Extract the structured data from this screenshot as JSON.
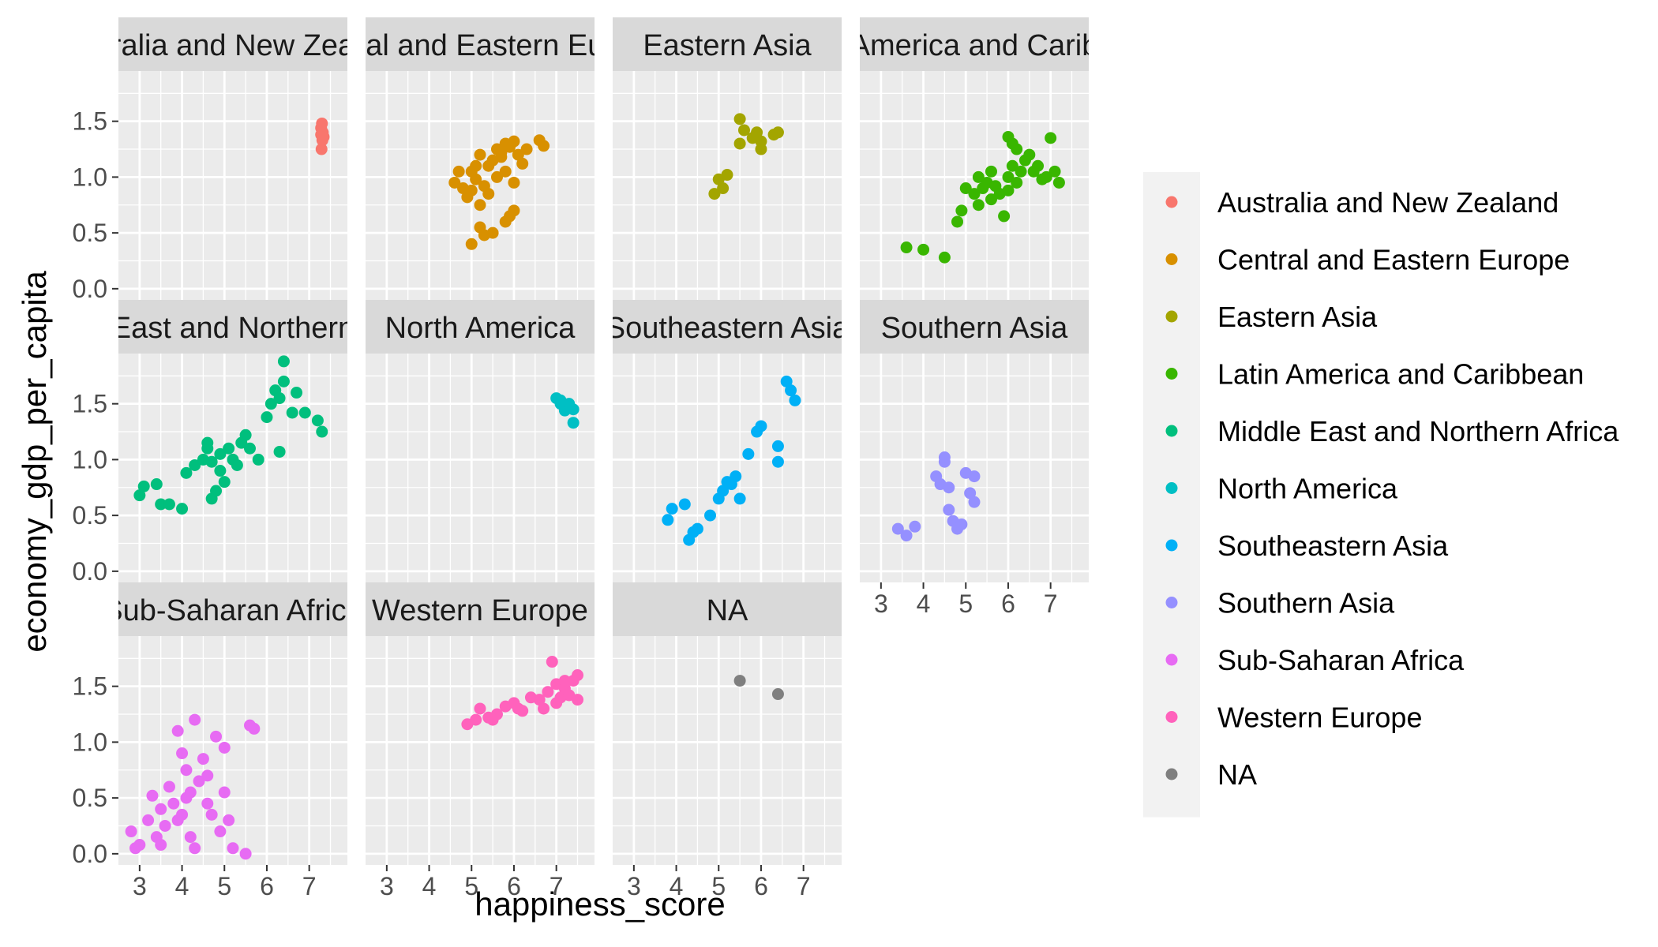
{
  "chart_data": {
    "type": "scatter",
    "xlabel": "happiness_score",
    "ylabel": "economy_gdp_per_capita",
    "xlim": [
      2.5,
      7.9
    ],
    "ylim": [
      -0.1,
      1.95
    ],
    "x_ticks": [
      "3",
      "4",
      "5",
      "6",
      "7"
    ],
    "y_ticks": [
      "0.0",
      "0.5",
      "1.0",
      "1.5"
    ],
    "grid": true,
    "legend_position": "right",
    "panel_strip_labels": [
      "ralia and New Zea",
      "ral and Eastern Eu",
      "Eastern Asia",
      "America and Carib",
      "East and Northern",
      "North America",
      "Southeastern Asia",
      "Southern Asia",
      "Sub-Saharan Africa",
      "Western Europe",
      "NA"
    ],
    "series": [
      {
        "name": "Australia and New Zealand",
        "color": "#F8766D",
        "points": [
          [
            7.28,
            1.44
          ],
          [
            7.31,
            1.33
          ],
          [
            7.29,
            1.25
          ],
          [
            7.32,
            1.4
          ],
          [
            7.3,
            1.48
          ],
          [
            7.28,
            1.38
          ],
          [
            7.34,
            1.36
          ]
        ]
      },
      {
        "name": "Central and Eastern Europe",
        "color": "#D89000",
        "points": [
          [
            4.8,
            0.9
          ],
          [
            5.0,
            1.05
          ],
          [
            5.1,
            0.98
          ],
          [
            5.2,
            1.2
          ],
          [
            5.3,
            0.92
          ],
          [
            5.4,
            1.1
          ],
          [
            5.5,
            1.15
          ],
          [
            5.6,
            1.25
          ],
          [
            5.7,
            1.18
          ],
          [
            5.8,
            1.3
          ],
          [
            5.9,
            1.27
          ],
          [
            6.0,
            1.32
          ],
          [
            6.1,
            1.2
          ],
          [
            6.2,
            1.12
          ],
          [
            6.6,
            1.33
          ],
          [
            6.7,
            1.28
          ],
          [
            4.9,
            0.82
          ],
          [
            5.2,
            0.75
          ],
          [
            5.4,
            0.85
          ],
          [
            5.6,
            1.0
          ],
          [
            5.8,
            1.05
          ],
          [
            6.0,
            0.95
          ],
          [
            6.0,
            0.7
          ],
          [
            5.9,
            0.65
          ],
          [
            5.8,
            0.6
          ],
          [
            5.2,
            0.55
          ],
          [
            5.3,
            0.48
          ],
          [
            5.0,
            0.4
          ],
          [
            5.5,
            0.5
          ],
          [
            4.7,
            1.05
          ],
          [
            5.1,
            1.1
          ],
          [
            5.7,
            1.22
          ],
          [
            6.3,
            1.25
          ],
          [
            5.0,
            0.88
          ],
          [
            4.6,
            0.95
          ]
        ]
      },
      {
        "name": "Eastern Asia",
        "color": "#A3A500",
        "points": [
          [
            4.9,
            0.85
          ],
          [
            5.0,
            0.98
          ],
          [
            5.1,
            0.9
          ],
          [
            5.2,
            1.02
          ],
          [
            5.5,
            1.3
          ],
          [
            5.5,
            1.52
          ],
          [
            5.6,
            1.42
          ],
          [
            5.9,
            1.4
          ],
          [
            6.0,
            1.32
          ],
          [
            6.0,
            1.25
          ],
          [
            6.3,
            1.38
          ],
          [
            6.4,
            1.4
          ],
          [
            5.8,
            1.35
          ]
        ]
      },
      {
        "name": "Latin America and Caribbean",
        "color": "#39B600",
        "points": [
          [
            3.6,
            0.37
          ],
          [
            4.0,
            0.35
          ],
          [
            4.5,
            0.28
          ],
          [
            4.8,
            0.6
          ],
          [
            4.9,
            0.7
          ],
          [
            5.0,
            0.9
          ],
          [
            5.2,
            0.85
          ],
          [
            5.3,
            0.75
          ],
          [
            5.4,
            0.9
          ],
          [
            5.5,
            0.95
          ],
          [
            5.6,
            1.05
          ],
          [
            5.7,
            0.92
          ],
          [
            5.8,
            0.85
          ],
          [
            5.9,
            0.65
          ],
          [
            6.0,
            1.0
          ],
          [
            6.0,
            0.88
          ],
          [
            6.1,
            1.1
          ],
          [
            6.1,
            1.3
          ],
          [
            6.2,
            0.95
          ],
          [
            6.3,
            1.05
          ],
          [
            6.4,
            1.15
          ],
          [
            6.5,
            1.2
          ],
          [
            6.6,
            1.05
          ],
          [
            6.7,
            1.1
          ],
          [
            6.8,
            0.98
          ],
          [
            6.9,
            1.0
          ],
          [
            7.0,
            1.35
          ],
          [
            7.1,
            1.05
          ],
          [
            7.2,
            0.95
          ],
          [
            6.0,
            1.36
          ],
          [
            5.6,
            0.8
          ],
          [
            6.2,
            1.25
          ],
          [
            5.3,
            1.0
          ]
        ]
      },
      {
        "name": "Middle East and Northern Africa",
        "color": "#00BF7D",
        "points": [
          [
            3.0,
            0.68
          ],
          [
            3.1,
            0.76
          ],
          [
            3.4,
            0.78
          ],
          [
            3.5,
            0.6
          ],
          [
            3.7,
            0.6
          ],
          [
            4.0,
            0.56
          ],
          [
            4.1,
            0.88
          ],
          [
            4.3,
            0.95
          ],
          [
            4.5,
            1.0
          ],
          [
            4.6,
            1.1
          ],
          [
            4.7,
            0.98
          ],
          [
            4.7,
            0.65
          ],
          [
            4.8,
            0.72
          ],
          [
            4.9,
            1.05
          ],
          [
            5.0,
            0.8
          ],
          [
            5.1,
            1.1
          ],
          [
            5.2,
            1.0
          ],
          [
            5.3,
            0.95
          ],
          [
            5.4,
            1.15
          ],
          [
            5.5,
            1.22
          ],
          [
            5.6,
            1.1
          ],
          [
            5.8,
            1.0
          ],
          [
            6.0,
            1.38
          ],
          [
            6.1,
            1.5
          ],
          [
            6.2,
            1.62
          ],
          [
            6.3,
            1.55
          ],
          [
            6.4,
            1.7
          ],
          [
            6.4,
            1.88
          ],
          [
            6.6,
            1.42
          ],
          [
            6.7,
            1.6
          ],
          [
            6.9,
            1.42
          ],
          [
            7.2,
            1.35
          ],
          [
            7.3,
            1.25
          ],
          [
            6.3,
            1.07
          ],
          [
            4.6,
            1.15
          ],
          [
            4.9,
            0.9
          ]
        ]
      },
      {
        "name": "North America",
        "color": "#00BFC4",
        "points": [
          [
            7.0,
            1.55
          ],
          [
            7.1,
            1.5
          ],
          [
            7.2,
            1.44
          ],
          [
            7.3,
            1.5
          ],
          [
            7.4,
            1.45
          ],
          [
            7.4,
            1.33
          ],
          [
            7.1,
            1.53
          ]
        ]
      },
      {
        "name": "Southeastern Asia",
        "color": "#00B0F6",
        "points": [
          [
            3.8,
            0.46
          ],
          [
            3.9,
            0.56
          ],
          [
            4.2,
            0.6
          ],
          [
            4.3,
            0.28
          ],
          [
            4.4,
            0.35
          ],
          [
            4.5,
            0.38
          ],
          [
            4.8,
            0.5
          ],
          [
            5.0,
            0.65
          ],
          [
            5.1,
            0.72
          ],
          [
            5.2,
            0.8
          ],
          [
            5.4,
            0.85
          ],
          [
            5.5,
            0.65
          ],
          [
            5.7,
            1.05
          ],
          [
            5.9,
            1.25
          ],
          [
            6.0,
            1.3
          ],
          [
            6.4,
            1.12
          ],
          [
            6.4,
            0.98
          ],
          [
            6.6,
            1.7
          ],
          [
            6.7,
            1.62
          ],
          [
            6.8,
            1.53
          ],
          [
            5.3,
            0.78
          ]
        ]
      },
      {
        "name": "Southern Asia",
        "color": "#9590FF",
        "points": [
          [
            3.4,
            0.38
          ],
          [
            3.6,
            0.32
          ],
          [
            3.8,
            0.4
          ],
          [
            4.3,
            0.85
          ],
          [
            4.4,
            0.78
          ],
          [
            4.5,
            0.98
          ],
          [
            4.5,
            1.02
          ],
          [
            4.6,
            0.75
          ],
          [
            4.6,
            0.55
          ],
          [
            4.7,
            0.45
          ],
          [
            4.8,
            0.38
          ],
          [
            4.9,
            0.42
          ],
          [
            5.0,
            0.88
          ],
          [
            5.1,
            0.7
          ],
          [
            5.2,
            0.85
          ],
          [
            5.2,
            0.62
          ]
        ]
      },
      {
        "name": "Sub-Saharan Africa",
        "color": "#E76BF3",
        "points": [
          [
            2.8,
            0.2
          ],
          [
            2.9,
            0.05
          ],
          [
            3.0,
            0.08
          ],
          [
            3.2,
            0.3
          ],
          [
            3.3,
            0.52
          ],
          [
            3.4,
            0.15
          ],
          [
            3.5,
            0.4
          ],
          [
            3.6,
            0.25
          ],
          [
            3.7,
            0.6
          ],
          [
            3.8,
            0.45
          ],
          [
            3.9,
            1.1
          ],
          [
            4.0,
            0.9
          ],
          [
            4.0,
            0.35
          ],
          [
            4.1,
            0.75
          ],
          [
            4.2,
            0.55
          ],
          [
            4.2,
            0.15
          ],
          [
            4.3,
            1.2
          ],
          [
            4.4,
            0.65
          ],
          [
            4.5,
            0.85
          ],
          [
            4.6,
            0.45
          ],
          [
            4.7,
            0.35
          ],
          [
            4.8,
            1.05
          ],
          [
            4.9,
            0.2
          ],
          [
            5.0,
            0.55
          ],
          [
            5.0,
            0.95
          ],
          [
            5.1,
            0.3
          ],
          [
            5.2,
            0.05
          ],
          [
            5.5,
            0.0
          ],
          [
            5.6,
            1.15
          ],
          [
            5.7,
            1.12
          ],
          [
            3.5,
            0.08
          ],
          [
            3.9,
            0.3
          ],
          [
            4.1,
            0.5
          ],
          [
            4.3,
            0.05
          ],
          [
            4.6,
            0.7
          ]
        ]
      },
      {
        "name": "Western Europe",
        "color": "#FF62BC",
        "points": [
          [
            4.9,
            1.16
          ],
          [
            5.1,
            1.2
          ],
          [
            5.2,
            1.3
          ],
          [
            5.4,
            1.22
          ],
          [
            5.6,
            1.25
          ],
          [
            5.8,
            1.32
          ],
          [
            6.0,
            1.35
          ],
          [
            6.2,
            1.28
          ],
          [
            6.4,
            1.4
          ],
          [
            6.6,
            1.38
          ],
          [
            6.8,
            1.45
          ],
          [
            6.9,
            1.72
          ],
          [
            7.0,
            1.52
          ],
          [
            7.1,
            1.4
          ],
          [
            7.2,
            1.48
          ],
          [
            7.3,
            1.42
          ],
          [
            7.4,
            1.55
          ],
          [
            7.5,
            1.6
          ],
          [
            7.5,
            1.38
          ],
          [
            5.5,
            1.2
          ],
          [
            6.1,
            1.3
          ],
          [
            6.7,
            1.3
          ],
          [
            7.0,
            1.35
          ],
          [
            7.2,
            1.55
          ]
        ]
      },
      {
        "name": "NA",
        "color": "#7F7F7F",
        "points": [
          [
            5.5,
            1.55
          ],
          [
            6.4,
            1.43
          ]
        ]
      }
    ]
  }
}
